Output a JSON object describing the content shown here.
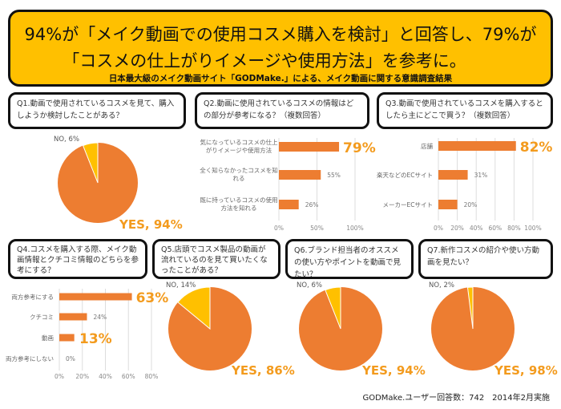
{
  "header": {
    "line1": "94%が「メイク動画での使用コスメ購入を検討」と回答し、79%が",
    "line2": "「コスメの仕上がりイメージや使用方法」を参考に。",
    "subtitle": "日本最大級のメイク動画サイト「GODMake.」による、メイク動画に関する意識調査結果"
  },
  "questions": {
    "q1": "Q1.動画で使用されているコスメを見て、購入しようか検討したことがある？",
    "q2": "Q2.動画に使用されているコスメの情報はどの部分が参考になる？（複数回答）",
    "q3": "Q3.動画で使用されているコスメを購入するとしたら主にどこで買う？（複数回答）",
    "q4": "Q4.コスメを購入する際、メイク動画情報とクチコミ情報のどちらを参考にする？",
    "q5": "Q5.店頭でコスメ製品の動画が流れているのを見て買いたくなったことがある？",
    "q6": "Q6.ブランド担当者のオススメの使い方やポイントを動画で見たい？",
    "q7": "Q7.新作コスメの紹介や使い方動画を見たい？"
  },
  "footer": "GODMake.ユーザー回答数：742　2014年2月実施",
  "colors": {
    "accent": "#ED7D31",
    "yellow": "#FFC000",
    "highlight": "#F39B1E"
  },
  "chart_data": [
    {
      "id": "q1",
      "type": "pie",
      "slices": [
        {
          "label": "YES, 94%",
          "value": 94
        },
        {
          "label": "NO, 6%",
          "value": 6
        }
      ]
    },
    {
      "id": "q2",
      "type": "bar",
      "categories": [
        "気になっているコスメの仕上がりイメージや使用方法",
        "全く知らなかったコスメを知れる",
        "既に持っているコスメの使用方法を知れる"
      ],
      "values": [
        79,
        55,
        26
      ],
      "value_labels": [
        "79%",
        "55%",
        "26%"
      ],
      "highlight": [
        true,
        false,
        false
      ],
      "ticks": [
        "0%",
        "50%",
        "100%"
      ],
      "xlim": [
        0,
        100
      ]
    },
    {
      "id": "q3",
      "type": "bar",
      "categories": [
        "店舗",
        "楽天などのECサイト",
        "メーカーECサイト"
      ],
      "values": [
        82,
        31,
        20
      ],
      "value_labels": [
        "82%",
        "31%",
        "20%"
      ],
      "highlight": [
        true,
        false,
        false
      ],
      "ticks": [
        "0%",
        "20%",
        "40%",
        "60%",
        "80%",
        "100%"
      ],
      "xlim": [
        0,
        100
      ]
    },
    {
      "id": "q4",
      "type": "bar",
      "categories": [
        "両方参考にする",
        "クチコミ",
        "動画",
        "両方参考にしない"
      ],
      "values": [
        63,
        24,
        13,
        0
      ],
      "value_labels": [
        "63%",
        "24%",
        "13%",
        "0%"
      ],
      "highlight": [
        true,
        false,
        true,
        false
      ],
      "ticks": [
        "0%",
        "20%",
        "40%",
        "60%",
        "80%"
      ],
      "xlim": [
        0,
        80
      ]
    },
    {
      "id": "q5",
      "type": "pie",
      "slices": [
        {
          "label": "YES, 86%",
          "value": 86
        },
        {
          "label": "NO, 14%",
          "value": 14
        }
      ]
    },
    {
      "id": "q6",
      "type": "pie",
      "slices": [
        {
          "label": "YES, 94%",
          "value": 94
        },
        {
          "label": "NO, 6%",
          "value": 6
        }
      ]
    },
    {
      "id": "q7",
      "type": "pie",
      "slices": [
        {
          "label": "YES, 98%",
          "value": 98
        },
        {
          "label": "NO, 2%",
          "value": 2
        }
      ]
    }
  ]
}
